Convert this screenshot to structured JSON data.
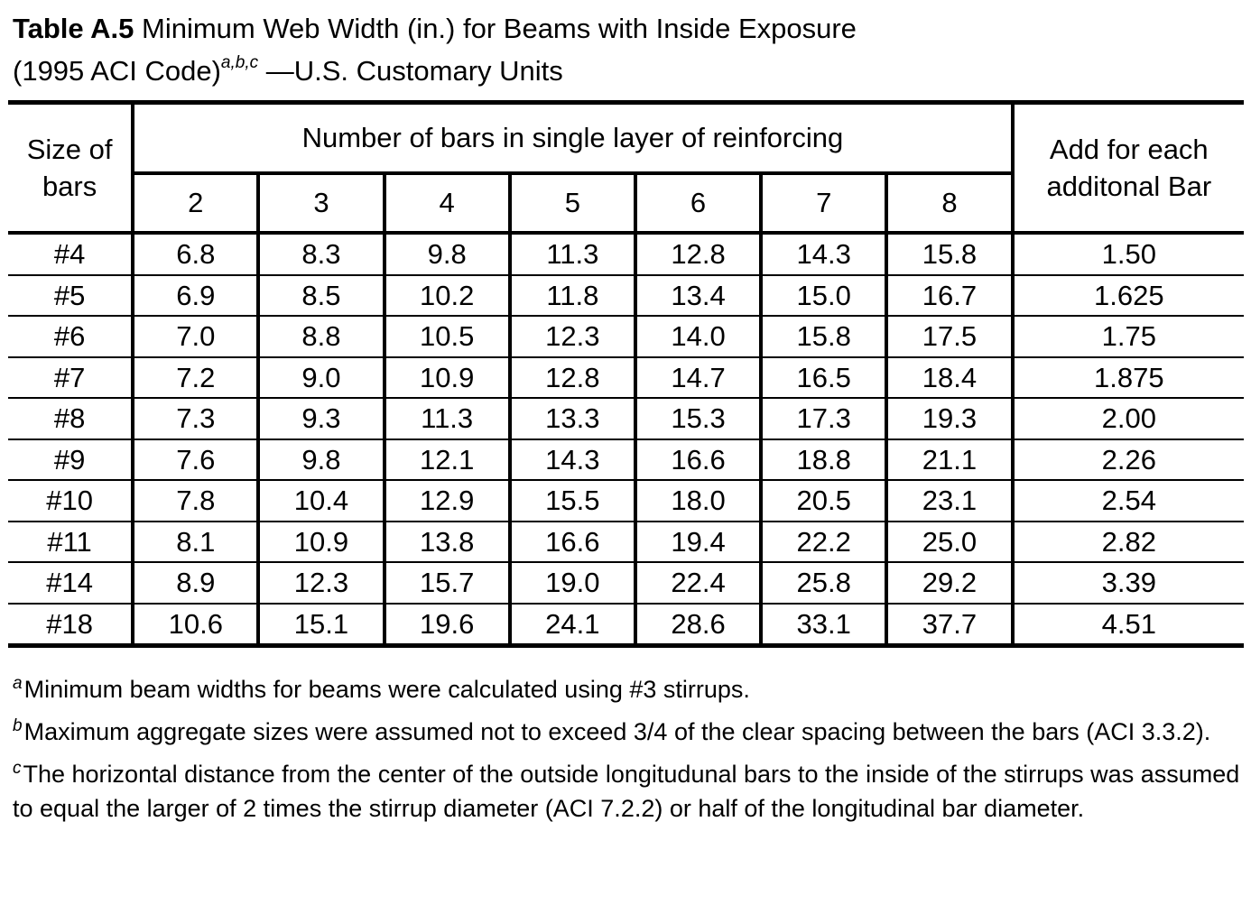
{
  "caption": {
    "label": "Table A.5",
    "title_line1": "Minimum Web Width (in.) for Beams with Inside Exposure",
    "title_line2_start": "(1995 ACI Code)",
    "superscript": "a,b,c",
    "title_line2_end": "—U.S. Customary Units"
  },
  "table": {
    "size_header_line1": "Size of",
    "size_header_line2": "bars",
    "group_header": "Number of bars in single layer of reinforcing",
    "add_header_line1": "Add for each",
    "add_header_line2": "additonal Bar",
    "bar_counts": [
      "2",
      "3",
      "4",
      "5",
      "6",
      "7",
      "8"
    ],
    "rows": [
      {
        "size": "#4",
        "values": [
          "6.8",
          "8.3",
          "9.8",
          "11.3",
          "12.8",
          "14.3",
          "15.8"
        ],
        "add": "1.50"
      },
      {
        "size": "#5",
        "values": [
          "6.9",
          "8.5",
          "10.2",
          "11.8",
          "13.4",
          "15.0",
          "16.7"
        ],
        "add": "1.625"
      },
      {
        "size": "#6",
        "values": [
          "7.0",
          "8.8",
          "10.5",
          "12.3",
          "14.0",
          "15.8",
          "17.5"
        ],
        "add": "1.75"
      },
      {
        "size": "#7",
        "values": [
          "7.2",
          "9.0",
          "10.9",
          "12.8",
          "14.7",
          "16.5",
          "18.4"
        ],
        "add": "1.875"
      },
      {
        "size": "#8",
        "values": [
          "7.3",
          "9.3",
          "11.3",
          "13.3",
          "15.3",
          "17.3",
          "19.3"
        ],
        "add": "2.00"
      },
      {
        "size": "#9",
        "values": [
          "7.6",
          "9.8",
          "12.1",
          "14.3",
          "16.6",
          "18.8",
          "21.1"
        ],
        "add": "2.26"
      },
      {
        "size": "#10",
        "values": [
          "7.8",
          "10.4",
          "12.9",
          "15.5",
          "18.0",
          "20.5",
          "23.1"
        ],
        "add": "2.54"
      },
      {
        "size": "#11",
        "values": [
          "8.1",
          "10.9",
          "13.8",
          "16.6",
          "19.4",
          "22.2",
          "25.0"
        ],
        "add": "2.82"
      },
      {
        "size": "#14",
        "values": [
          "8.9",
          "12.3",
          "15.7",
          "19.0",
          "22.4",
          "25.8",
          "29.2"
        ],
        "add": "3.39"
      },
      {
        "size": "#18",
        "values": [
          "10.6",
          "15.1",
          "19.6",
          "24.1",
          "28.6",
          "33.1",
          "37.7"
        ],
        "add": "4.51"
      }
    ]
  },
  "footnotes": [
    {
      "marker": "a",
      "text": "Minimum beam widths for beams were calculated using #3 stirrups."
    },
    {
      "marker": "b",
      "text": "Maximum aggregate sizes were assumed not to exceed 3/4 of the clear spacing between the bars (ACI 3.3.2)."
    },
    {
      "marker": "c",
      "text": "The horizontal distance from the center of the outside longitudunal bars to the inside of the stirrups was assumed to equal the larger of 2 times the stirrup diameter (ACI 7.2.2) or half of the longitudinal bar diameter."
    }
  ]
}
